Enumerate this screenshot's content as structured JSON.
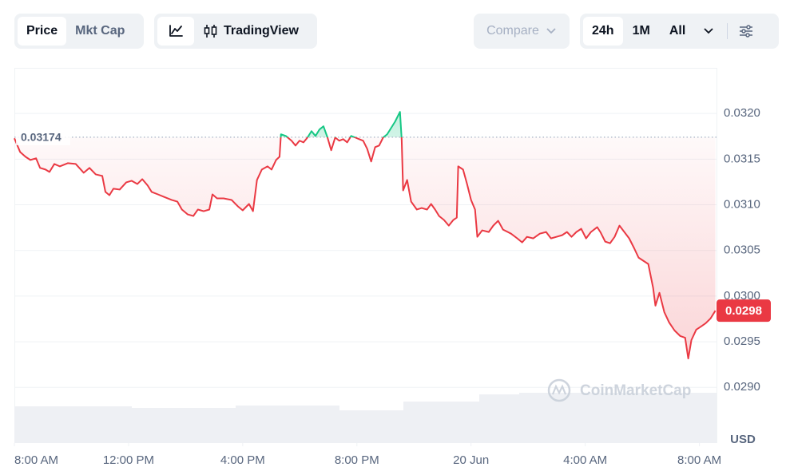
{
  "toolbar": {
    "tabs": [
      "Price",
      "Mkt Cap"
    ],
    "views": [
      "TradingView"
    ],
    "compare": "Compare",
    "ranges": [
      "24h",
      "1M",
      "All"
    ]
  },
  "chart_data": {
    "type": "line",
    "currency": "USD",
    "watermark": "CoinMarketCap",
    "color": "#ea3943",
    "up_color": "#16c784",
    "baseline": 0.03174,
    "current_price": {
      "value": 0.02984,
      "label": "0.0298"
    },
    "xlim": [
      0,
      24.6
    ],
    "xticks": [
      {
        "value": 0,
        "label": "8:00 AM"
      },
      {
        "value": 4,
        "label": "12:00 PM"
      },
      {
        "value": 8,
        "label": "4:00 PM"
      },
      {
        "value": 12,
        "label": "8:00 PM"
      },
      {
        "value": 16,
        "label": "20 Jun"
      },
      {
        "value": 20,
        "label": "4:00 AM"
      },
      {
        "value": 24,
        "label": "8:00 AM"
      }
    ],
    "ylim": [
      0.02839,
      0.0325
    ],
    "yticks": [
      {
        "value": 0.029,
        "label": "0.0290"
      },
      0.0295,
      {
        "value": 0.03,
        "label": "0.0300"
      },
      0.0305,
      {
        "value": 0.031,
        "label": "0.0310"
      },
      0.0315,
      {
        "value": 0.032,
        "label": "0.0320"
      }
    ],
    "grid": true,
    "x": [
      0,
      0.2,
      0.39,
      0.56,
      0.76,
      0.9,
      1.09,
      1.23,
      1.4,
      1.59,
      1.87,
      2.15,
      2.43,
      2.63,
      2.85,
      3.08,
      3.19,
      3.33,
      3.47,
      3.69,
      3.92,
      4.11,
      4.31,
      4.48,
      4.67,
      4.81,
      5.03,
      5.23,
      5.51,
      5.71,
      5.87,
      6.07,
      6.27,
      6.43,
      6.63,
      6.83,
      6.94,
      7.1,
      7.33,
      7.61,
      7.83,
      8.0,
      8.22,
      8.36,
      8.5,
      8.67,
      8.87,
      9.01,
      9.17,
      9.29,
      9.34,
      9.51,
      9.71,
      9.85,
      9.99,
      10.13,
      10.27,
      10.41,
      10.55,
      10.69,
      10.83,
      10.97,
      11.1,
      11.24,
      11.38,
      11.52,
      11.66,
      11.8,
      11.94,
      12.08,
      12.22,
      12.36,
      12.5,
      12.64,
      12.78,
      12.92,
      13.06,
      13.2,
      13.34,
      13.51,
      13.57,
      13.62,
      13.76,
      13.9,
      14.1,
      14.27,
      14.46,
      14.6,
      14.74,
      14.88,
      15.05,
      15.22,
      15.38,
      15.5,
      15.55,
      15.72,
      15.86,
      16.0,
      16.14,
      16.22,
      16.39,
      16.62,
      16.78,
      16.95,
      17.12,
      17.4,
      17.62,
      17.79,
      17.96,
      18.18,
      18.41,
      18.63,
      18.8,
      18.99,
      19.19,
      19.36,
      19.52,
      19.69,
      19.86,
      20.03,
      20.2,
      20.42,
      20.53,
      20.7,
      20.87,
      21.03,
      21.2,
      21.37,
      21.54,
      21.71,
      21.87,
      22.04,
      22.21,
      22.38,
      22.46,
      22.6,
      22.77,
      22.94,
      23.13,
      23.33,
      23.5,
      23.61,
      23.72,
      23.89,
      24.06,
      24.22,
      24.39,
      24.56
    ],
    "values": [
      0.031728,
      0.031579,
      0.031526,
      0.031491,
      0.031509,
      0.031404,
      0.031386,
      0.03136,
      0.031447,
      0.031421,
      0.031456,
      0.031447,
      0.031351,
      0.031404,
      0.031333,
      0.031316,
      0.031141,
      0.031105,
      0.031176,
      0.031167,
      0.031246,
      0.031263,
      0.031228,
      0.031281,
      0.031211,
      0.031141,
      0.031114,
      0.031088,
      0.031053,
      0.031035,
      0.030948,
      0.030895,
      0.030877,
      0.030948,
      0.03093,
      0.030948,
      0.031114,
      0.03107,
      0.03107,
      0.031053,
      0.030983,
      0.030939,
      0.031009,
      0.03093,
      0.031272,
      0.031386,
      0.031421,
      0.031386,
      0.031491,
      0.031526,
      0.031772,
      0.031754,
      0.031702,
      0.031649,
      0.031702,
      0.031684,
      0.031737,
      0.031807,
      0.031754,
      0.031825,
      0.03186,
      0.031737,
      0.031597,
      0.031737,
      0.031702,
      0.031719,
      0.031684,
      0.031754,
      0.031737,
      0.031719,
      0.031702,
      0.031614,
      0.031474,
      0.031632,
      0.031649,
      0.031737,
      0.031772,
      0.031842,
      0.031912,
      0.032018,
      0.031711,
      0.031158,
      0.031272,
      0.031035,
      0.030948,
      0.030965,
      0.030948,
      0.031009,
      0.030948,
      0.030877,
      0.030834,
      0.030772,
      0.030834,
      0.03086,
      0.031421,
      0.031386,
      0.031228,
      0.031053,
      0.030948,
      0.030649,
      0.03072,
      0.030702,
      0.030772,
      0.030825,
      0.030728,
      0.030684,
      0.030632,
      0.030588,
      0.030649,
      0.030632,
      0.030684,
      0.030702,
      0.030632,
      0.030649,
      0.030667,
      0.030702,
      0.030649,
      0.030702,
      0.030737,
      0.030632,
      0.030702,
      0.030755,
      0.030702,
      0.030597,
      0.030579,
      0.030649,
      0.030772,
      0.030702,
      0.030632,
      0.030527,
      0.030421,
      0.030386,
      0.030351,
      0.030088,
      0.029895,
      0.030036,
      0.029825,
      0.029711,
      0.029623,
      0.029562,
      0.029544,
      0.029316,
      0.029518,
      0.029632,
      0.029667,
      0.029702,
      0.029755,
      0.02984
    ]
  }
}
